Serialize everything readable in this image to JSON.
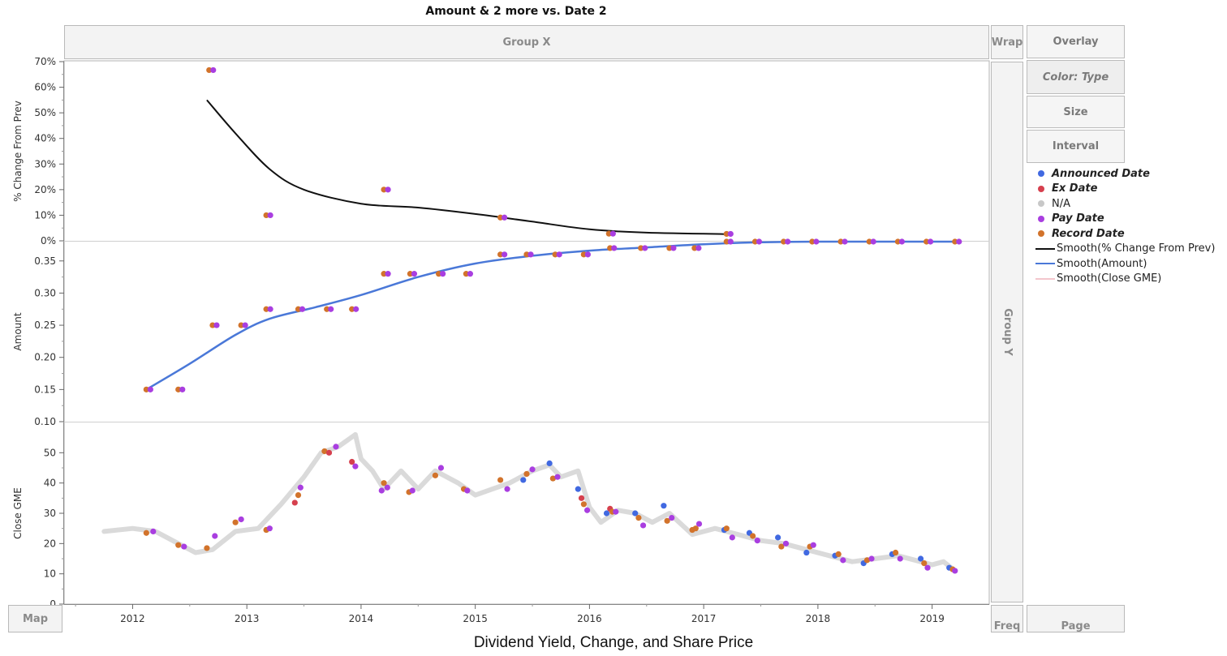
{
  "title": "Amount & 2 more vs. Date 2",
  "caption": "Dividend Yield, Change, and Share Price",
  "zones": {
    "group_x": "Group X",
    "group_y": "Group Y",
    "wrap": "Wrap",
    "map": "Map",
    "freq": "Freq",
    "page": "Page"
  },
  "buttons": {
    "overlay": "Overlay",
    "color": "Color: Type",
    "size": "Size",
    "interval": "Interval"
  },
  "legend": [
    {
      "label": "Announced Date",
      "kind": "dot",
      "color": "#4169e1",
      "bold": true
    },
    {
      "label": "Ex Date",
      "kind": "dot",
      "color": "#d6404e",
      "bold": true
    },
    {
      "label": "N/A",
      "kind": "dot",
      "color": "#c8c8c8",
      "bold": false
    },
    {
      "label": "Pay Date",
      "kind": "dot",
      "color": "#a93ee0",
      "bold": true
    },
    {
      "label": "Record Date",
      "kind": "dot",
      "color": "#d2732b",
      "bold": true
    },
    {
      "label": "Smooth(% Change From Prev)",
      "kind": "line",
      "color": "#111111",
      "bold": false
    },
    {
      "label": "Smooth(Amount)",
      "kind": "line",
      "color": "#4a78d8",
      "bold": false
    },
    {
      "label": "Smooth(Close GME)",
      "kind": "line",
      "color": "#f3c6cc",
      "bold": false
    }
  ],
  "colors": {
    "announced": "#4169e1",
    "ex": "#d6404e",
    "na": "#d4d4d4",
    "pay": "#a93ee0",
    "record": "#d2732b",
    "smooth_change": "#111111",
    "smooth_amount": "#4a78d8"
  },
  "chart_data": {
    "type": "scatter",
    "xlabel": "",
    "x_ticks": [
      "2012",
      "2013",
      "2014",
      "2015",
      "2016",
      "2017",
      "2018",
      "2019"
    ],
    "xlim": [
      2011.4,
      2019.5
    ],
    "panels": [
      {
        "ylabel": "% Change From Prev",
        "ylim": [
          0,
          70
        ],
        "y_ticks": [
          "70%",
          "60%",
          "50%",
          "40%",
          "30%",
          "20%",
          "10%",
          "0%"
        ],
        "y_tick_values": [
          70,
          60,
          50,
          40,
          30,
          20,
          10,
          0
        ],
        "points": [
          {
            "x": 2012.67,
            "y": 66.7,
            "types": [
              "record",
              "pay"
            ]
          },
          {
            "x": 2013.17,
            "y": 10.0,
            "types": [
              "record",
              "pay"
            ]
          },
          {
            "x": 2014.2,
            "y": 20.0,
            "types": [
              "record",
              "pay"
            ]
          },
          {
            "x": 2015.22,
            "y": 9.1,
            "types": [
              "record",
              "pay"
            ]
          },
          {
            "x": 2016.17,
            "y": 2.8,
            "types": [
              "record",
              "pay"
            ]
          },
          {
            "x": 2017.2,
            "y": 2.7,
            "types": [
              "record",
              "pay"
            ]
          }
        ],
        "smooth": [
          [
            2012.65,
            55
          ],
          [
            2012.9,
            42
          ],
          [
            2013.2,
            28
          ],
          [
            2013.5,
            20
          ],
          [
            2014.0,
            14.5
          ],
          [
            2014.5,
            13
          ],
          [
            2015.0,
            10.5
          ],
          [
            2015.5,
            7.5
          ],
          [
            2016.0,
            4.5
          ],
          [
            2016.5,
            3.2
          ],
          [
            2017.25,
            2.6
          ]
        ]
      },
      {
        "ylabel": "Amount",
        "ylim": [
          0.1,
          0.38
        ],
        "y_ticks": [
          "0.35",
          "0.30",
          "0.25",
          "0.20",
          "0.15",
          "0.10"
        ],
        "y_tick_values": [
          0.35,
          0.3,
          0.25,
          0.2,
          0.15,
          0.1
        ],
        "points": [
          {
            "x": 2012.12,
            "y": 0.15
          },
          {
            "x": 2012.4,
            "y": 0.15
          },
          {
            "x": 2012.7,
            "y": 0.25
          },
          {
            "x": 2012.95,
            "y": 0.25
          },
          {
            "x": 2013.17,
            "y": 0.275
          },
          {
            "x": 2013.45,
            "y": 0.275
          },
          {
            "x": 2013.7,
            "y": 0.275
          },
          {
            "x": 2013.92,
            "y": 0.275
          },
          {
            "x": 2014.2,
            "y": 0.33
          },
          {
            "x": 2014.43,
            "y": 0.33
          },
          {
            "x": 2014.68,
            "y": 0.33
          },
          {
            "x": 2014.92,
            "y": 0.33
          },
          {
            "x": 2015.22,
            "y": 0.36
          },
          {
            "x": 2015.45,
            "y": 0.36
          },
          {
            "x": 2015.7,
            "y": 0.36
          },
          {
            "x": 2015.95,
            "y": 0.36
          },
          {
            "x": 2016.18,
            "y": 0.37
          },
          {
            "x": 2016.45,
            "y": 0.37
          },
          {
            "x": 2016.7,
            "y": 0.37
          },
          {
            "x": 2016.92,
            "y": 0.37
          },
          {
            "x": 2017.2,
            "y": 0.38
          },
          {
            "x": 2017.45,
            "y": 0.38
          },
          {
            "x": 2017.7,
            "y": 0.38
          },
          {
            "x": 2017.95,
            "y": 0.38
          },
          {
            "x": 2018.2,
            "y": 0.38
          },
          {
            "x": 2018.45,
            "y": 0.38
          },
          {
            "x": 2018.7,
            "y": 0.38
          },
          {
            "x": 2018.95,
            "y": 0.38
          },
          {
            "x": 2019.2,
            "y": 0.38
          }
        ],
        "smooth": [
          [
            2012.12,
            0.15
          ],
          [
            2012.5,
            0.19
          ],
          [
            2012.9,
            0.235
          ],
          [
            2013.2,
            0.26
          ],
          [
            2013.6,
            0.278
          ],
          [
            2014.0,
            0.297
          ],
          [
            2014.5,
            0.325
          ],
          [
            2015.0,
            0.346
          ],
          [
            2015.5,
            0.358
          ],
          [
            2016.0,
            0.366
          ],
          [
            2016.5,
            0.371
          ],
          [
            2017.0,
            0.376
          ],
          [
            2017.5,
            0.379
          ],
          [
            2018.0,
            0.38
          ],
          [
            2019.2,
            0.38
          ]
        ]
      },
      {
        "ylabel": "Close GME",
        "ylim": [
          0,
          60
        ],
        "y_ticks": [
          "50",
          "40",
          "30",
          "20",
          "10",
          "0"
        ],
        "y_tick_values": [
          50,
          40,
          30,
          20,
          10,
          0
        ],
        "price_line": [
          [
            2011.75,
            24
          ],
          [
            2012.0,
            25
          ],
          [
            2012.2,
            24
          ],
          [
            2012.4,
            20
          ],
          [
            2012.55,
            17
          ],
          [
            2012.7,
            18
          ],
          [
            2012.9,
            24
          ],
          [
            2013.1,
            25
          ],
          [
            2013.3,
            33
          ],
          [
            2013.5,
            42
          ],
          [
            2013.65,
            50
          ],
          [
            2013.8,
            52
          ],
          [
            2013.95,
            56
          ],
          [
            2014.0,
            48
          ],
          [
            2014.1,
            44
          ],
          [
            2014.2,
            38
          ],
          [
            2014.35,
            44
          ],
          [
            2014.5,
            38
          ],
          [
            2014.65,
            44
          ],
          [
            2014.85,
            40
          ],
          [
            2015.0,
            36
          ],
          [
            2015.15,
            38
          ],
          [
            2015.3,
            40
          ],
          [
            2015.5,
            44
          ],
          [
            2015.65,
            46
          ],
          [
            2015.75,
            42
          ],
          [
            2015.9,
            44
          ],
          [
            2016.0,
            32
          ],
          [
            2016.1,
            27
          ],
          [
            2016.25,
            31
          ],
          [
            2016.4,
            30
          ],
          [
            2016.55,
            27
          ],
          [
            2016.7,
            30
          ],
          [
            2016.9,
            23
          ],
          [
            2017.1,
            25
          ],
          [
            2017.3,
            23
          ],
          [
            2017.5,
            21
          ],
          [
            2017.7,
            20
          ],
          [
            2017.9,
            18
          ],
          [
            2018.1,
            16
          ],
          [
            2018.3,
            14
          ],
          [
            2018.5,
            15
          ],
          [
            2018.7,
            16
          ],
          [
            2018.9,
            14
          ],
          [
            2019.0,
            13
          ],
          [
            2019.1,
            14
          ],
          [
            2019.2,
            11
          ]
        ],
        "points": [
          {
            "x": 2012.12,
            "y": 23.5,
            "type": "record"
          },
          {
            "x": 2012.18,
            "y": 24,
            "type": "pay"
          },
          {
            "x": 2012.4,
            "y": 19.5,
            "type": "record"
          },
          {
            "x": 2012.45,
            "y": 19,
            "type": "pay"
          },
          {
            "x": 2012.65,
            "y": 18.5,
            "type": "record"
          },
          {
            "x": 2012.72,
            "y": 22.5,
            "type": "pay"
          },
          {
            "x": 2012.9,
            "y": 27,
            "type": "record"
          },
          {
            "x": 2012.95,
            "y": 28,
            "type": "pay"
          },
          {
            "x": 2013.17,
            "y": 24.5,
            "type": "record"
          },
          {
            "x": 2013.2,
            "y": 25,
            "type": "pay"
          },
          {
            "x": 2013.42,
            "y": 33.5,
            "type": "ex"
          },
          {
            "x": 2013.45,
            "y": 36,
            "type": "record"
          },
          {
            "x": 2013.47,
            "y": 38.5,
            "type": "pay"
          },
          {
            "x": 2013.68,
            "y": 50.5,
            "type": "record"
          },
          {
            "x": 2013.72,
            "y": 50,
            "type": "ex"
          },
          {
            "x": 2013.78,
            "y": 52,
            "type": "pay"
          },
          {
            "x": 2013.92,
            "y": 47,
            "type": "ex"
          },
          {
            "x": 2013.95,
            "y": 45.5,
            "type": "pay"
          },
          {
            "x": 2014.18,
            "y": 37.5,
            "type": "pay"
          },
          {
            "x": 2014.2,
            "y": 40,
            "type": "record"
          },
          {
            "x": 2014.23,
            "y": 38.5,
            "type": "pay"
          },
          {
            "x": 2014.42,
            "y": 37,
            "type": "record"
          },
          {
            "x": 2014.45,
            "y": 37.5,
            "type": "pay"
          },
          {
            "x": 2014.65,
            "y": 42.5,
            "type": "record"
          },
          {
            "x": 2014.7,
            "y": 45,
            "type": "pay"
          },
          {
            "x": 2014.9,
            "y": 38,
            "type": "record"
          },
          {
            "x": 2014.93,
            "y": 37.5,
            "type": "pay"
          },
          {
            "x": 2015.22,
            "y": 41,
            "type": "record"
          },
          {
            "x": 2015.28,
            "y": 38,
            "type": "pay"
          },
          {
            "x": 2015.42,
            "y": 41,
            "type": "announced"
          },
          {
            "x": 2015.45,
            "y": 43,
            "type": "record"
          },
          {
            "x": 2015.5,
            "y": 44.5,
            "type": "pay"
          },
          {
            "x": 2015.65,
            "y": 46.5,
            "type": "announced"
          },
          {
            "x": 2015.68,
            "y": 41.5,
            "type": "record"
          },
          {
            "x": 2015.72,
            "y": 42,
            "type": "pay"
          },
          {
            "x": 2015.9,
            "y": 38,
            "type": "announced"
          },
          {
            "x": 2015.93,
            "y": 35,
            "type": "ex"
          },
          {
            "x": 2015.95,
            "y": 33,
            "type": "record"
          },
          {
            "x": 2015.98,
            "y": 31,
            "type": "pay"
          },
          {
            "x": 2016.15,
            "y": 30,
            "type": "announced"
          },
          {
            "x": 2016.18,
            "y": 31.5,
            "type": "ex"
          },
          {
            "x": 2016.2,
            "y": 30.5,
            "type": "record"
          },
          {
            "x": 2016.23,
            "y": 30.5,
            "type": "pay"
          },
          {
            "x": 2016.4,
            "y": 30,
            "type": "announced"
          },
          {
            "x": 2016.43,
            "y": 28.5,
            "type": "record"
          },
          {
            "x": 2016.47,
            "y": 26,
            "type": "pay"
          },
          {
            "x": 2016.65,
            "y": 32.5,
            "type": "announced"
          },
          {
            "x": 2016.68,
            "y": 27.5,
            "type": "record"
          },
          {
            "x": 2016.72,
            "y": 28.5,
            "type": "pay"
          },
          {
            "x": 2016.9,
            "y": 24.5,
            "type": "record"
          },
          {
            "x": 2016.93,
            "y": 25,
            "type": "record"
          },
          {
            "x": 2016.96,
            "y": 26.5,
            "type": "pay"
          },
          {
            "x": 2017.18,
            "y": 24.5,
            "type": "announced"
          },
          {
            "x": 2017.2,
            "y": 25,
            "type": "record"
          },
          {
            "x": 2017.25,
            "y": 22,
            "type": "pay"
          },
          {
            "x": 2017.4,
            "y": 23.5,
            "type": "announced"
          },
          {
            "x": 2017.43,
            "y": 22.5,
            "type": "record"
          },
          {
            "x": 2017.47,
            "y": 21,
            "type": "pay"
          },
          {
            "x": 2017.65,
            "y": 22,
            "type": "announced"
          },
          {
            "x": 2017.68,
            "y": 19,
            "type": "record"
          },
          {
            "x": 2017.72,
            "y": 20,
            "type": "pay"
          },
          {
            "x": 2017.9,
            "y": 17,
            "type": "announced"
          },
          {
            "x": 2017.93,
            "y": 19,
            "type": "record"
          },
          {
            "x": 2017.96,
            "y": 19.5,
            "type": "pay"
          },
          {
            "x": 2018.15,
            "y": 16,
            "type": "announced"
          },
          {
            "x": 2018.18,
            "y": 16.5,
            "type": "record"
          },
          {
            "x": 2018.22,
            "y": 14.5,
            "type": "pay"
          },
          {
            "x": 2018.4,
            "y": 13.5,
            "type": "announced"
          },
          {
            "x": 2018.43,
            "y": 14.5,
            "type": "record"
          },
          {
            "x": 2018.47,
            "y": 15,
            "type": "pay"
          },
          {
            "x": 2018.65,
            "y": 16.5,
            "type": "announced"
          },
          {
            "x": 2018.68,
            "y": 17,
            "type": "record"
          },
          {
            "x": 2018.72,
            "y": 15,
            "type": "pay"
          },
          {
            "x": 2018.9,
            "y": 15,
            "type": "announced"
          },
          {
            "x": 2018.93,
            "y": 13.5,
            "type": "record"
          },
          {
            "x": 2018.96,
            "y": 12,
            "type": "pay"
          },
          {
            "x": 2019.15,
            "y": 12,
            "type": "announced"
          },
          {
            "x": 2019.18,
            "y": 11.5,
            "type": "record"
          },
          {
            "x": 2019.2,
            "y": 11,
            "type": "pay"
          }
        ]
      }
    ]
  }
}
